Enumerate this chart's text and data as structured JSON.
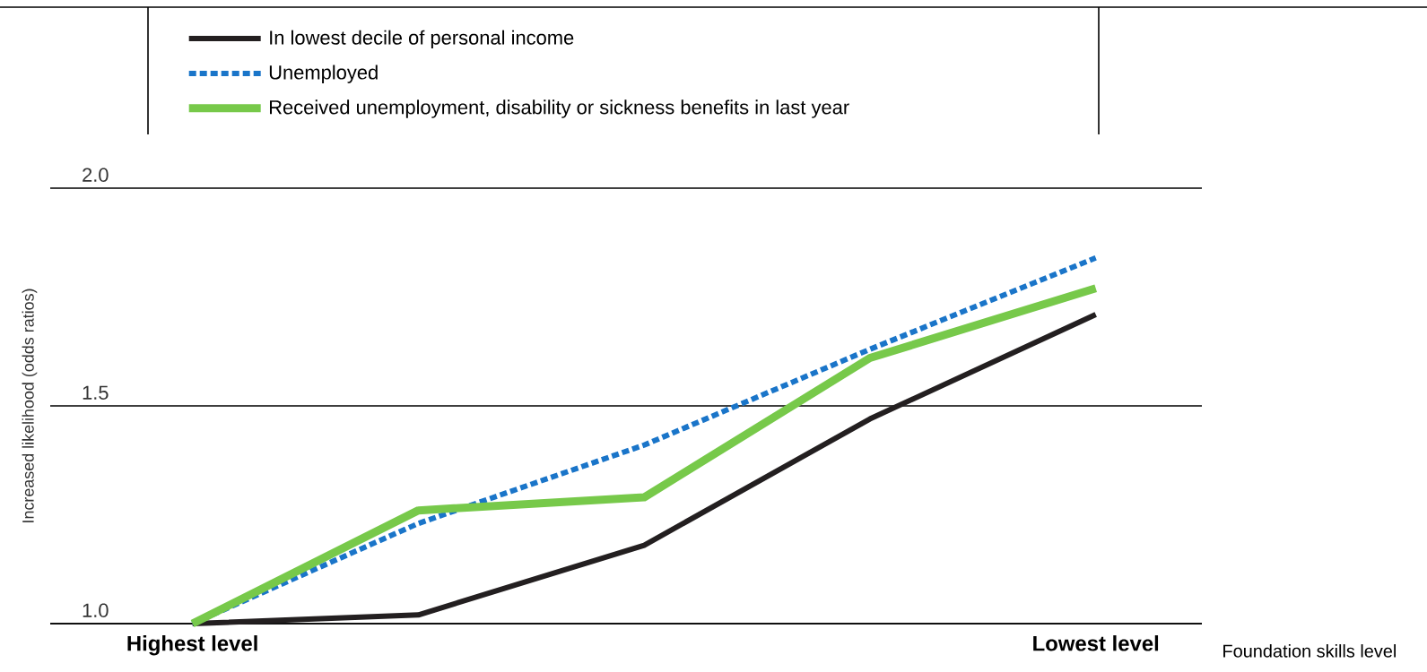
{
  "chart_data": {
    "type": "line",
    "xlabel": "Foundation skills level",
    "ylabel": "Increased likelihood (odds ratios)",
    "categories": [
      "Highest level",
      null,
      null,
      null,
      "Lowest level"
    ],
    "series": [
      {
        "name": "In lowest decile of personal income",
        "color": "#231f20",
        "line_style": "solid",
        "values": [
          1.0,
          1.02,
          1.18,
          1.47,
          1.71
        ]
      },
      {
        "name": "Unemployed",
        "color": "#1a75c9",
        "line_style": "dashed",
        "values": [
          1.0,
          1.23,
          1.41,
          1.63,
          1.84
        ]
      },
      {
        "name": "Received unemployment, disability or sickness benefits in last year",
        "color": "#77c94a",
        "line_style": "solid",
        "values": [
          1.0,
          1.26,
          1.29,
          1.61,
          1.77
        ]
      }
    ],
    "ylim": [
      1.0,
      2.0
    ],
    "yticks": [
      {
        "value": 1.0,
        "label": "1.0"
      },
      {
        "value": 1.5,
        "label": "1.5"
      },
      {
        "value": 2.0,
        "label": "2.0"
      }
    ],
    "grid": "y",
    "legend": "top",
    "marker": "none"
  }
}
